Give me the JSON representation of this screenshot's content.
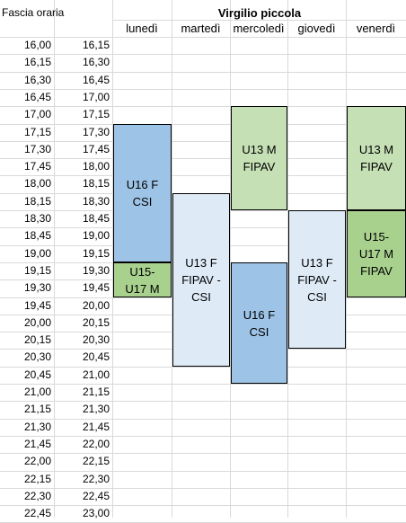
{
  "header": {
    "fascia_label": "Fascia oraria",
    "title": "Virgilio piccola",
    "days": [
      "lunedì",
      "martedì",
      "mercoledì",
      "giovedì",
      "venerdì"
    ]
  },
  "slots": [
    [
      "16,00",
      "16,15"
    ],
    [
      "16,15",
      "16,30"
    ],
    [
      "16,30",
      "16,45"
    ],
    [
      "16,45",
      "17,00"
    ],
    [
      "17,00",
      "17,15"
    ],
    [
      "17,15",
      "17,30"
    ],
    [
      "17,30",
      "17,45"
    ],
    [
      "17,45",
      "18,00"
    ],
    [
      "18,00",
      "18,15"
    ],
    [
      "18,15",
      "18,30"
    ],
    [
      "18,30",
      "18,45"
    ],
    [
      "18,45",
      "19,00"
    ],
    [
      "19,00",
      "19,15"
    ],
    [
      "19,15",
      "19,30"
    ],
    [
      "19,30",
      "19,45"
    ],
    [
      "19,45",
      "20,00"
    ],
    [
      "20,00",
      "20,15"
    ],
    [
      "20,15",
      "20,30"
    ],
    [
      "20,30",
      "20,45"
    ],
    [
      "20,45",
      "21,00"
    ],
    [
      "21,00",
      "21,15"
    ],
    [
      "21,15",
      "21,30"
    ],
    [
      "21,30",
      "21,45"
    ],
    [
      "21,45",
      "22,00"
    ],
    [
      "22,00",
      "22,15"
    ],
    [
      "22,15",
      "22,30"
    ],
    [
      "22,30",
      "22,45"
    ],
    [
      "22,45",
      "23,00"
    ]
  ],
  "blocks": [
    {
      "day": 0,
      "from": "17,15",
      "to": "19,15",
      "lines": [
        "U16 F",
        "CSI"
      ],
      "color": "#9dc3e6"
    },
    {
      "day": 0,
      "from": "19,15",
      "to": "19,45",
      "lines": [
        "U15-",
        "U17 M"
      ],
      "color": "#a9d18e"
    },
    {
      "day": 1,
      "from": "18,15",
      "to": "20,45",
      "lines": [
        "U13 F",
        "FIPAV -",
        "CSI"
      ],
      "color": "#deebf7"
    },
    {
      "day": 2,
      "from": "17,00",
      "to": "18,30",
      "lines": [
        "U13 M",
        "FIPAV"
      ],
      "color": "#c5e0b4"
    },
    {
      "day": 2,
      "from": "19,15",
      "to": "21,00",
      "lines": [
        "U16 F",
        "CSI"
      ],
      "color": "#9dc3e6"
    },
    {
      "day": 3,
      "from": "18,30",
      "to": "20,30",
      "lines": [
        "U13 F",
        "FIPAV -",
        "CSI"
      ],
      "color": "#deebf7"
    },
    {
      "day": 4,
      "from": "17,00",
      "to": "18,30",
      "lines": [
        "U13 M",
        "FIPAV"
      ],
      "color": "#c5e0b4"
    },
    {
      "day": 4,
      "from": "18,30",
      "to": "19,45",
      "lines": [
        "U15-",
        "U17 M",
        "FIPAV"
      ],
      "color": "#a9d18e"
    }
  ]
}
